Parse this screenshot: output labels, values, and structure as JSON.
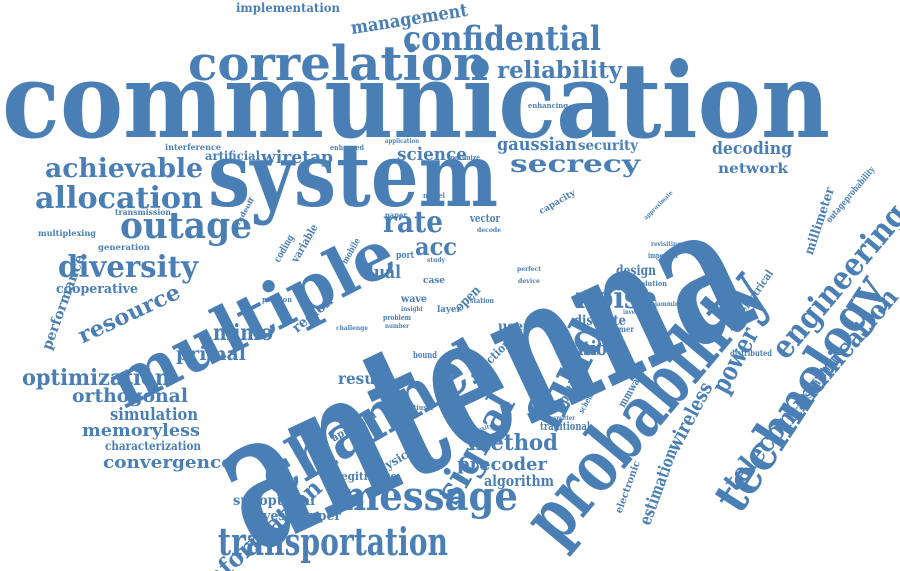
{
  "colors": {
    "word": "#4a7fb5",
    "background": "#ffffff"
  },
  "words": {
    "communication": "communication",
    "antenna": "antenna",
    "system": "system",
    "multiple": "multiple",
    "probability": "probability",
    "channel": "channel",
    "correlation": "correlation",
    "confidential": "confidential",
    "technology": "technology",
    "engineering": "engineering",
    "telecommunication": "telecommunication",
    "message": "message",
    "transportation": "transportation",
    "signal": "signal",
    "fluid": "fluid",
    "outage": "outage",
    "diversity": "diversity",
    "allocation": "allocation",
    "achievable": "achievable",
    "secrecy": "secrecy",
    "noise": "noise",
    "reliability": "reliability",
    "management": "management",
    "implementation": "implementation",
    "optimization": "optimization",
    "orthogonal": "orthogonal",
    "simulation": "simulation",
    "memoryless": "memoryless",
    "characterization": "characterization",
    "convergence": "convergence",
    "information": "information",
    "resource": "resource",
    "mimo": "mimo",
    "primal": "primal",
    "performance": "performance",
    "cooperative": "cooperative",
    "rate": "rate",
    "acc": "acc",
    "dual": "dual",
    "science": "science",
    "gaussian": "gaussian",
    "security": "security",
    "decoding": "decoding",
    "network": "network",
    "millimeter": "millimeter",
    "power": "power",
    "wireless": "wireless",
    "estimation": "estimation",
    "method": "method",
    "precoder": "precoder",
    "algorithm": "algorithm",
    "ratio": "ratio",
    "design": "design",
    "result": "result",
    "wiretap": "wiretap",
    "artificial": "artificial",
    "interference": "interference",
    "transmission": "transmission",
    "multiplexing": "multiplexing",
    "generation": "generation",
    "region": "region",
    "suboptimal": "suboptimal",
    "eavesdropper": "eavesdropper",
    "legitimate": "legitimate",
    "physical": "physical",
    "approach": "approach",
    "traditional": "traditional",
    "electronic": "electronic",
    "mmwave": "mmwave",
    "spatial": "spatial",
    "user": "user",
    "discrete": "discrete",
    "transmitting": "transmitting",
    "electrical": "electrical",
    "distributed": "distributed",
    "outageprobability": "outageprobability",
    "capacity": "capacity",
    "enhancing": "enhancing",
    "vector": "vector",
    "coding": "coding",
    "variable": "variable",
    "tradeoff": "tradeoff",
    "enhanced": "enhanced",
    "maximize": "maximize",
    "application": "application",
    "paper": "paper",
    "model": "model",
    "wave": "wave",
    "case": "case",
    "open": "open",
    "layer": "layer",
    "station": "station",
    "selection": "selection",
    "bound": "bound",
    "jammer": "jammer",
    "optimal": "optimal",
    "solution": "solution",
    "imperfect": "imperfect",
    "revisiting": "revisiting",
    "scheme": "scheme",
    "multiuser": "multiuser",
    "mobile": "mobile",
    "position": "position",
    "problem": "problem",
    "number": "number",
    "port": "port",
    "decode": "decode",
    "approximate": "approximate",
    "device": "device",
    "switchable": "switchable",
    "jamming": "jamming",
    "investigate": "investigate",
    "transmitter": "transmitter",
    "insight": "insight",
    "challenge": "challenge",
    "study": "study",
    "perfect": "perfect",
    "complexity": "complexity"
  }
}
